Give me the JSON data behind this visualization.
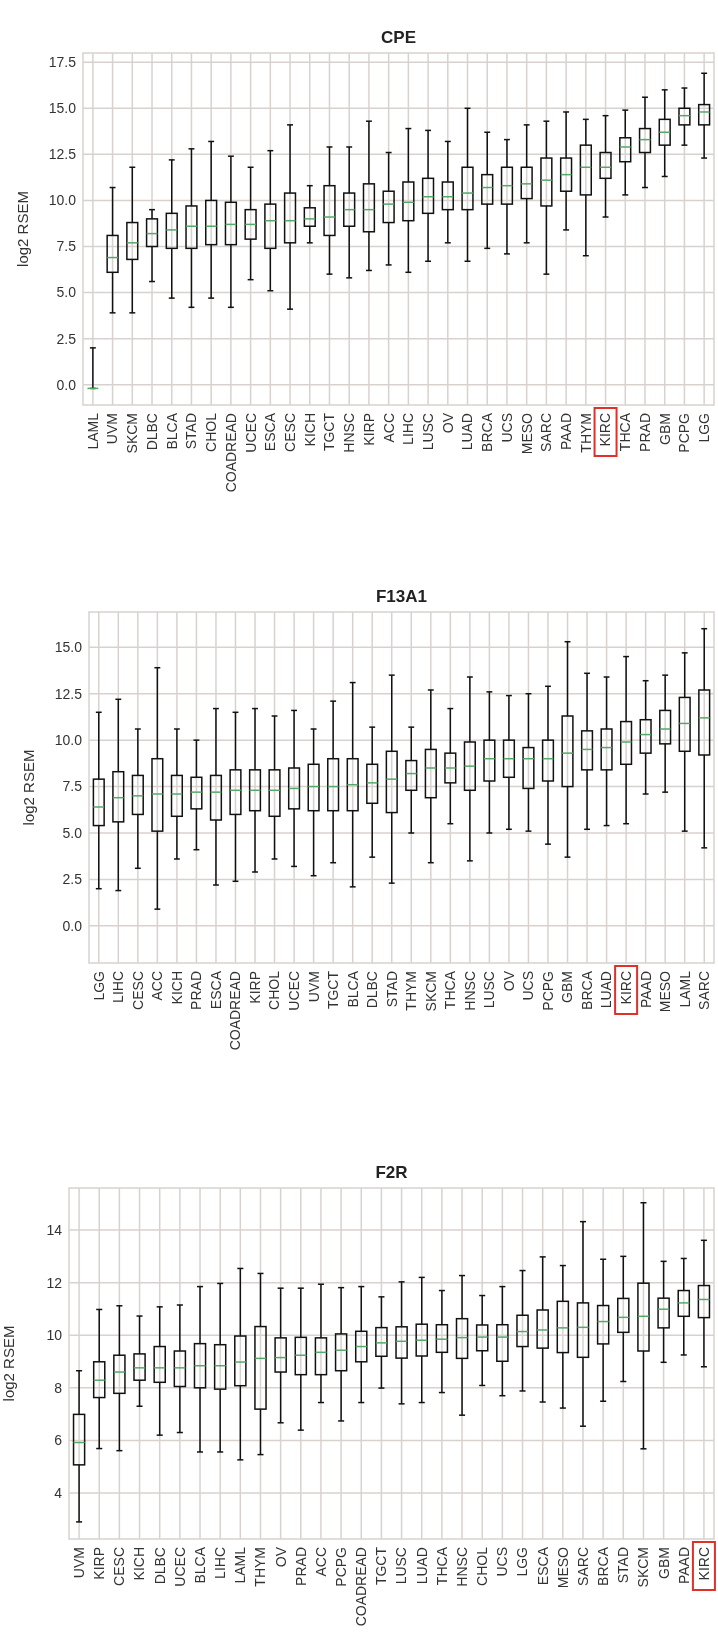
{
  "chart_data": [
    {
      "type": "box",
      "title": "CPE",
      "ylabel": "log2 RSEM",
      "ylim": [
        -1.1,
        18.0
      ],
      "yticks": [
        {
          "value": 0,
          "label": "0.0"
        },
        {
          "value": 2.5,
          "label": "2.5"
        },
        {
          "value": 5,
          "label": "5.0"
        },
        {
          "value": 7.5,
          "label": "7.5"
        },
        {
          "value": 10,
          "label": "10.0"
        },
        {
          "value": 12.5,
          "label": "12.5"
        },
        {
          "value": 15,
          "label": "15.0"
        },
        {
          "value": 17.5,
          "label": "17.5"
        }
      ],
      "grid": true,
      "categories": [
        "LAML",
        "UVM",
        "SKCM",
        "DLBC",
        "BLCA",
        "STAD",
        "CHOL",
        "COADREAD",
        "UCEC",
        "ESCA",
        "CESC",
        "KICH",
        "TGCT",
        "HNSC",
        "KIRP",
        "ACC",
        "LIHC",
        "LUSC",
        "OV",
        "LUAD",
        "BRCA",
        "UCS",
        "MESO",
        "SARC",
        "PAAD",
        "THYM",
        "KIRC",
        "THCA",
        "PRAD",
        "GBM",
        "PCPG",
        "LGG"
      ],
      "boxes": [
        {
          "low": -0.2,
          "q1": -0.2,
          "median": -0.2,
          "q3": -0.2,
          "high": 2.0
        },
        {
          "low": 3.9,
          "q1": 6.1,
          "median": 6.9,
          "q3": 8.1,
          "high": 10.7
        },
        {
          "low": 3.9,
          "q1": 6.8,
          "median": 7.7,
          "q3": 8.8,
          "high": 11.8
        },
        {
          "low": 5.6,
          "q1": 7.5,
          "median": 8.2,
          "q3": 9.0,
          "high": 9.5
        },
        {
          "low": 4.7,
          "q1": 7.4,
          "median": 8.4,
          "q3": 9.3,
          "high": 12.2
        },
        {
          "low": 4.2,
          "q1": 7.4,
          "median": 8.6,
          "q3": 9.7,
          "high": 12.8
        },
        {
          "low": 4.7,
          "q1": 7.6,
          "median": 8.6,
          "q3": 10.0,
          "high": 13.2
        },
        {
          "low": 4.2,
          "q1": 7.6,
          "median": 8.7,
          "q3": 9.9,
          "high": 12.4
        },
        {
          "low": 5.7,
          "q1": 7.9,
          "median": 8.7,
          "q3": 9.5,
          "high": 11.8
        },
        {
          "low": 5.1,
          "q1": 7.4,
          "median": 8.9,
          "q3": 9.8,
          "high": 12.7
        },
        {
          "low": 4.1,
          "q1": 7.7,
          "median": 8.9,
          "q3": 10.4,
          "high": 14.1
        },
        {
          "low": 7.7,
          "q1": 8.6,
          "median": 9.0,
          "q3": 9.6,
          "high": 10.8
        },
        {
          "low": 6.0,
          "q1": 8.1,
          "median": 9.1,
          "q3": 10.8,
          "high": 12.9
        },
        {
          "low": 5.8,
          "q1": 8.6,
          "median": 9.5,
          "q3": 10.4,
          "high": 12.9
        },
        {
          "low": 6.2,
          "q1": 8.3,
          "median": 9.5,
          "q3": 10.9,
          "high": 14.3
        },
        {
          "low": 6.5,
          "q1": 8.8,
          "median": 9.8,
          "q3": 10.5,
          "high": 12.6
        },
        {
          "low": 6.1,
          "q1": 8.9,
          "median": 9.9,
          "q3": 11.0,
          "high": 13.9
        },
        {
          "low": 6.7,
          "q1": 9.3,
          "median": 10.2,
          "q3": 11.2,
          "high": 13.8
        },
        {
          "low": 7.7,
          "q1": 9.5,
          "median": 10.2,
          "q3": 11.0,
          "high": 13.2
        },
        {
          "low": 6.7,
          "q1": 9.5,
          "median": 10.4,
          "q3": 11.8,
          "high": 15.0
        },
        {
          "low": 7.4,
          "q1": 9.8,
          "median": 10.7,
          "q3": 11.4,
          "high": 13.7
        },
        {
          "low": 7.1,
          "q1": 9.8,
          "median": 10.8,
          "q3": 11.8,
          "high": 13.3
        },
        {
          "low": 7.7,
          "q1": 10.1,
          "median": 10.9,
          "q3": 11.8,
          "high": 14.1
        },
        {
          "low": 6.0,
          "q1": 9.7,
          "median": 11.1,
          "q3": 12.3,
          "high": 14.3
        },
        {
          "low": 8.4,
          "q1": 10.5,
          "median": 11.4,
          "q3": 12.3,
          "high": 14.8
        },
        {
          "low": 7.0,
          "q1": 10.3,
          "median": 11.8,
          "q3": 13.0,
          "high": 14.4
        },
        {
          "low": 9.1,
          "q1": 11.2,
          "median": 11.8,
          "q3": 12.6,
          "high": 14.6
        },
        {
          "low": 10.3,
          "q1": 12.1,
          "median": 12.9,
          "q3": 13.4,
          "high": 14.9
        },
        {
          "low": 10.7,
          "q1": 12.6,
          "median": 13.3,
          "q3": 13.9,
          "high": 15.6
        },
        {
          "low": 11.3,
          "q1": 13.0,
          "median": 13.7,
          "q3": 14.4,
          "high": 16.0
        },
        {
          "low": 13.0,
          "q1": 14.1,
          "median": 14.6,
          "q3": 15.0,
          "high": 16.1
        },
        {
          "low": 12.3,
          "q1": 14.1,
          "median": 14.8,
          "q3": 15.2,
          "high": 16.9
        }
      ]
    },
    {
      "type": "box",
      "title": "F13A1",
      "ylabel": "log2 RSEM",
      "ylim": [
        -2.0,
        16.9
      ],
      "yticks": [
        {
          "value": 0,
          "label": "0.0"
        },
        {
          "value": 2.5,
          "label": "2.5"
        },
        {
          "value": 5,
          "label": "5.0"
        },
        {
          "value": 7.5,
          "label": "7.5"
        },
        {
          "value": 10,
          "label": "10.0"
        },
        {
          "value": 12.5,
          "label": "12.5"
        },
        {
          "value": 15,
          "label": "15.0"
        }
      ],
      "grid": true,
      "categories": [
        "LGG",
        "LIHC",
        "CESC",
        "ACC",
        "KICH",
        "PRAD",
        "ESCA",
        "COADREAD",
        "KIRP",
        "CHOL",
        "UCEC",
        "UVM",
        "TGCT",
        "BLCA",
        "DLBC",
        "STAD",
        "THYM",
        "SKCM",
        "THCA",
        "HNSC",
        "LUSC",
        "OV",
        "UCS",
        "PCPG",
        "GBM",
        "BRCA",
        "LUAD",
        "KIRC",
        "PAAD",
        "MESO",
        "LAML",
        "SARC"
      ],
      "boxes": [
        {
          "low": 2.0,
          "q1": 5.4,
          "median": 6.4,
          "q3": 7.9,
          "high": 11.5
        },
        {
          "low": 1.9,
          "q1": 5.6,
          "median": 6.9,
          "q3": 8.3,
          "high": 12.2
        },
        {
          "low": 3.1,
          "q1": 6.0,
          "median": 7.0,
          "q3": 8.1,
          "high": 10.6
        },
        {
          "low": 0.9,
          "q1": 5.1,
          "median": 7.1,
          "q3": 9.0,
          "high": 13.9
        },
        {
          "low": 3.6,
          "q1": 5.9,
          "median": 7.1,
          "q3": 8.1,
          "high": 10.6
        },
        {
          "low": 4.1,
          "q1": 6.3,
          "median": 7.2,
          "q3": 8.0,
          "high": 10.0
        },
        {
          "low": 2.2,
          "q1": 5.7,
          "median": 7.2,
          "q3": 8.1,
          "high": 11.7
        },
        {
          "low": 2.4,
          "q1": 6.0,
          "median": 7.3,
          "q3": 8.4,
          "high": 11.5
        },
        {
          "low": 2.9,
          "q1": 6.2,
          "median": 7.3,
          "q3": 8.4,
          "high": 11.7
        },
        {
          "low": 3.6,
          "q1": 5.9,
          "median": 7.3,
          "q3": 8.4,
          "high": 11.3
        },
        {
          "low": 3.2,
          "q1": 6.3,
          "median": 7.4,
          "q3": 8.5,
          "high": 11.6
        },
        {
          "low": 2.7,
          "q1": 6.2,
          "median": 7.5,
          "q3": 8.7,
          "high": 10.6
        },
        {
          "low": 3.4,
          "q1": 6.2,
          "median": 7.5,
          "q3": 9.0,
          "high": 12.1
        },
        {
          "low": 2.1,
          "q1": 6.2,
          "median": 7.6,
          "q3": 9.0,
          "high": 13.1
        },
        {
          "low": 3.7,
          "q1": 6.6,
          "median": 7.7,
          "q3": 8.7,
          "high": 10.7
        },
        {
          "low": 2.3,
          "q1": 6.1,
          "median": 7.9,
          "q3": 9.4,
          "high": 13.5
        },
        {
          "low": 5.0,
          "q1": 7.3,
          "median": 8.2,
          "q3": 8.9,
          "high": 10.7
        },
        {
          "low": 3.4,
          "q1": 6.9,
          "median": 8.5,
          "q3": 9.5,
          "high": 12.7
        },
        {
          "low": 5.5,
          "q1": 7.7,
          "median": 8.5,
          "q3": 9.3,
          "high": 11.7
        },
        {
          "low": 3.5,
          "q1": 7.3,
          "median": 8.6,
          "q3": 9.9,
          "high": 13.4
        },
        {
          "low": 5.0,
          "q1": 7.8,
          "median": 9.0,
          "q3": 10.0,
          "high": 12.6
        },
        {
          "low": 5.2,
          "q1": 8.0,
          "median": 9.0,
          "q3": 10.0,
          "high": 12.4
        },
        {
          "low": 5.1,
          "q1": 7.4,
          "median": 9.0,
          "q3": 9.6,
          "high": 12.5
        },
        {
          "low": 4.4,
          "q1": 7.8,
          "median": 9.0,
          "q3": 10.0,
          "high": 12.9
        },
        {
          "low": 3.7,
          "q1": 7.5,
          "median": 9.3,
          "q3": 11.3,
          "high": 15.3
        },
        {
          "low": 5.2,
          "q1": 8.4,
          "median": 9.5,
          "q3": 10.5,
          "high": 13.6
        },
        {
          "low": 5.4,
          "q1": 8.4,
          "median": 9.6,
          "q3": 10.6,
          "high": 13.4
        },
        {
          "low": 5.5,
          "q1": 8.7,
          "median": 9.9,
          "q3": 11.0,
          "high": 14.5
        },
        {
          "low": 7.1,
          "q1": 9.3,
          "median": 10.3,
          "q3": 11.1,
          "high": 13.2
        },
        {
          "low": 7.2,
          "q1": 9.8,
          "median": 10.6,
          "q3": 11.6,
          "high": 13.5
        },
        {
          "low": 5.1,
          "q1": 9.4,
          "median": 10.9,
          "q3": 12.3,
          "high": 14.7
        },
        {
          "low": 4.2,
          "q1": 9.2,
          "median": 11.2,
          "q3": 12.7,
          "high": 16.0
        }
      ]
    },
    {
      "type": "box",
      "title": "F2R",
      "ylabel": "log2 RSEM",
      "ylim": [
        2.25,
        15.6
      ],
      "yticks": [
        4,
        6,
        8,
        10,
        12,
        14
      ],
      "grid": true,
      "categories": [
        "UVM",
        "KIRP",
        "CESC",
        "KICH",
        "DLBC",
        "UCEC",
        "BLCA",
        "LIHC",
        "LAML",
        "THYM",
        "OV",
        "PRAD",
        "ACC",
        "PCPG",
        "COADREAD",
        "TGCT",
        "LUSC",
        "LUAD",
        "THCA",
        "HNSC",
        "CHOL",
        "UCS",
        "LGG",
        "ESCA",
        "MESO",
        "SARC",
        "BRCA",
        "STAD",
        "SKCM",
        "GBM",
        "PAAD",
        "KIRC"
      ],
      "boxes": [
        {
          "low": 2.9,
          "q1": 5.07,
          "median": 5.92,
          "q3": 6.99,
          "high": 8.65
        },
        {
          "low": 5.69,
          "q1": 7.63,
          "median": 8.29,
          "q3": 8.99,
          "high": 10.98
        },
        {
          "low": 5.61,
          "q1": 7.79,
          "median": 8.6,
          "q3": 9.24,
          "high": 11.12
        },
        {
          "low": 7.3,
          "q1": 8.29,
          "median": 8.76,
          "q3": 9.29,
          "high": 10.73
        },
        {
          "low": 6.2,
          "q1": 8.21,
          "median": 8.76,
          "q3": 9.57,
          "high": 11.08
        },
        {
          "low": 6.3,
          "q1": 8.05,
          "median": 8.76,
          "q3": 9.4,
          "high": 11.15
        },
        {
          "low": 5.56,
          "q1": 8.0,
          "median": 8.84,
          "q3": 9.68,
          "high": 11.85
        },
        {
          "low": 5.56,
          "q1": 7.95,
          "median": 8.84,
          "q3": 9.64,
          "high": 11.97
        },
        {
          "low": 5.26,
          "q1": 8.08,
          "median": 8.98,
          "q3": 9.97,
          "high": 12.54
        },
        {
          "low": 5.46,
          "q1": 7.19,
          "median": 9.12,
          "q3": 10.33,
          "high": 12.35
        },
        {
          "low": 6.67,
          "q1": 8.6,
          "median": 9.15,
          "q3": 9.9,
          "high": 11.79
        },
        {
          "low": 6.39,
          "q1": 8.5,
          "median": 9.24,
          "q3": 9.92,
          "high": 11.79
        },
        {
          "low": 7.44,
          "q1": 8.5,
          "median": 9.35,
          "q3": 9.9,
          "high": 11.94
        },
        {
          "low": 6.74,
          "q1": 8.65,
          "median": 9.43,
          "q3": 10.05,
          "high": 11.81
        },
        {
          "low": 7.44,
          "q1": 8.99,
          "median": 9.57,
          "q3": 10.15,
          "high": 11.85
        },
        {
          "low": 7.99,
          "q1": 9.2,
          "median": 9.71,
          "q3": 10.29,
          "high": 11.46
        },
        {
          "low": 7.39,
          "q1": 9.13,
          "median": 9.77,
          "q3": 10.32,
          "high": 12.03
        },
        {
          "low": 7.44,
          "q1": 9.21,
          "median": 9.81,
          "q3": 10.42,
          "high": 12.2
        },
        {
          "low": 7.82,
          "q1": 9.35,
          "median": 9.85,
          "q3": 10.4,
          "high": 11.7
        },
        {
          "low": 6.96,
          "q1": 9.12,
          "median": 9.91,
          "q3": 10.63,
          "high": 12.27
        },
        {
          "low": 8.09,
          "q1": 9.41,
          "median": 9.93,
          "q3": 10.39,
          "high": 11.51
        },
        {
          "low": 7.7,
          "q1": 9.01,
          "median": 9.93,
          "q3": 10.4,
          "high": 11.85
        },
        {
          "low": 7.88,
          "q1": 9.57,
          "median": 10.14,
          "q3": 10.76,
          "high": 12.46
        },
        {
          "low": 7.46,
          "q1": 9.51,
          "median": 10.2,
          "q3": 10.96,
          "high": 12.98
        },
        {
          "low": 7.23,
          "q1": 9.34,
          "median": 10.28,
          "q3": 11.29,
          "high": 12.65
        },
        {
          "low": 6.54,
          "q1": 9.16,
          "median": 10.3,
          "q3": 11.23,
          "high": 14.32
        },
        {
          "low": 7.49,
          "q1": 9.67,
          "median": 10.52,
          "q3": 11.13,
          "high": 12.89
        },
        {
          "low": 8.24,
          "q1": 10.11,
          "median": 10.68,
          "q3": 11.4,
          "high": 13.0
        },
        {
          "low": 5.68,
          "q1": 9.4,
          "median": 10.72,
          "q3": 11.98,
          "high": 15.04
        },
        {
          "low": 8.97,
          "q1": 10.28,
          "median": 10.99,
          "q3": 11.41,
          "high": 12.81
        },
        {
          "low": 9.25,
          "q1": 10.72,
          "median": 11.23,
          "q3": 11.7,
          "high": 12.92
        },
        {
          "low": 8.8,
          "q1": 10.67,
          "median": 11.36,
          "q3": 11.89,
          "high": 13.61
        }
      ]
    }
  ]
}
